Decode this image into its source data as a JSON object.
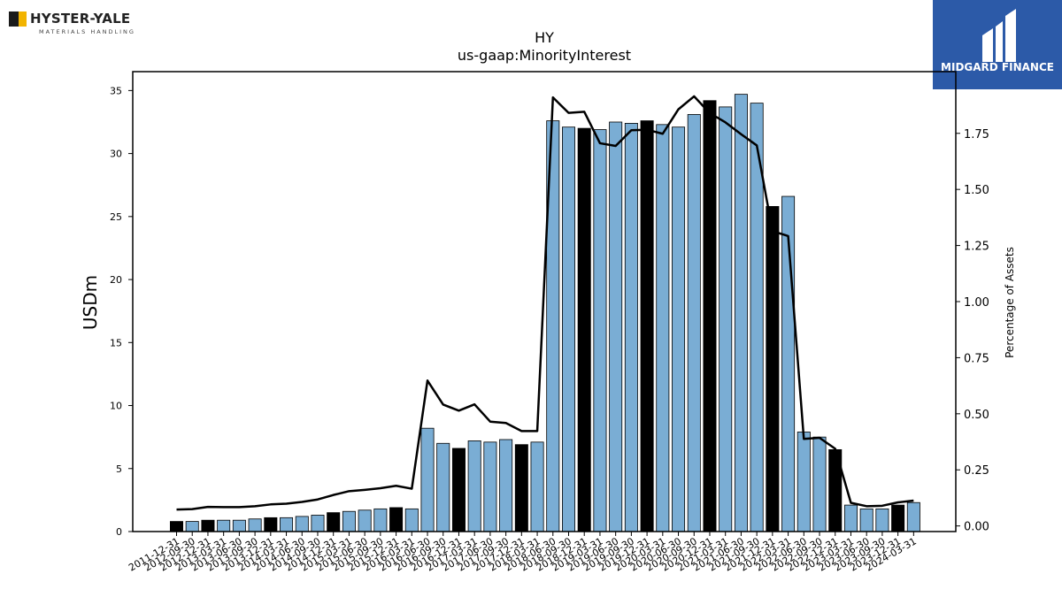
{
  "logos": {
    "left": {
      "name": "HYSTER-YALE",
      "subtitle": "MATERIALS HANDLING"
    },
    "right": {
      "name": "MIDGARD FINANCE"
    }
  },
  "chart_data": {
    "type": "bar",
    "title": "HY",
    "subtitle": "us-gaap:MinorityInterest",
    "ylabel": "USDm",
    "y2label": "Percentage of Assets",
    "ylim": [
      0,
      36.5
    ],
    "y2lim": [
      -0.025,
      2.025
    ],
    "yticks": [
      0,
      5,
      10,
      15,
      20,
      25,
      30,
      35
    ],
    "y2ticks": [
      "0.00",
      "0.25",
      "0.50",
      "0.75",
      "1.00",
      "1.25",
      "1.50",
      "1.75"
    ],
    "colors": {
      "bar": "#7aadd4",
      "highlight_bar": "#000000",
      "line": "#000000"
    },
    "categories": [
      "2011-12-31",
      "2012-09-30",
      "2012-12-31",
      "2013-03-31",
      "2013-06-30",
      "2013-09-30",
      "2013-12-31",
      "2014-03-31",
      "2014-06-30",
      "2014-09-30",
      "2014-12-31",
      "2015-03-31",
      "2015-06-30",
      "2015-09-30",
      "2015-12-31",
      "2016-03-31",
      "2016-06-30",
      "2016-09-30",
      "2016-12-31",
      "2017-03-31",
      "2017-06-30",
      "2017-09-30",
      "2017-12-31",
      "2018-03-31",
      "2018-06-30",
      "2018-09-30",
      "2018-12-31",
      "2019-03-31",
      "2019-06-30",
      "2019-09-30",
      "2019-12-31",
      "2020-03-31",
      "2020-06-30",
      "2020-09-30",
      "2020-12-31",
      "2021-03-31",
      "2021-06-30",
      "2021-09-30",
      "2021-12-31",
      "2022-03-31",
      "2022-06-30",
      "2022-09-30",
      "2022-12-31",
      "2023-03-31",
      "2023-06-30",
      "2023-09-30",
      "2023-12-31",
      "2024-03-31"
    ],
    "series": [
      {
        "kind": "bar",
        "values": [
          0.8,
          0.8,
          0.9,
          0.9,
          0.9,
          1.0,
          1.1,
          1.1,
          1.2,
          1.3,
          1.5,
          1.6,
          1.7,
          1.8,
          1.9,
          1.8,
          8.2,
          7.0,
          6.6,
          7.2,
          7.1,
          7.3,
          6.9,
          7.1,
          32.6,
          32.1,
          32.0,
          31.9,
          32.5,
          32.4,
          32.6,
          32.3,
          32.1,
          33.1,
          34.2,
          33.7,
          34.7,
          34.0,
          25.8,
          26.6,
          7.9,
          7.5,
          6.5,
          2.1,
          1.8,
          1.8,
          2.1,
          2.3
        ],
        "highlight": [
          true,
          false,
          true,
          false,
          false,
          false,
          true,
          false,
          false,
          false,
          true,
          false,
          false,
          false,
          true,
          false,
          false,
          false,
          true,
          false,
          false,
          false,
          true,
          false,
          false,
          false,
          true,
          false,
          false,
          false,
          true,
          false,
          false,
          false,
          true,
          false,
          false,
          false,
          true,
          false,
          false,
          false,
          true,
          false,
          false,
          false,
          true,
          false
        ]
      },
      {
        "kind": "line",
        "axis": "right",
        "values": [
          0.073,
          0.075,
          0.085,
          0.084,
          0.084,
          0.088,
          0.096,
          0.099,
          0.107,
          0.118,
          0.138,
          0.155,
          0.161,
          0.168,
          0.179,
          0.166,
          0.648,
          0.541,
          0.514,
          0.542,
          0.465,
          0.459,
          0.423,
          0.423,
          1.91,
          1.841,
          1.846,
          1.706,
          1.694,
          1.764,
          1.766,
          1.748,
          1.857,
          1.915,
          1.84,
          1.799,
          1.746,
          1.696,
          1.314,
          1.292,
          0.388,
          0.393,
          0.344,
          0.103,
          0.088,
          0.09,
          0.105,
          0.113
        ]
      }
    ]
  }
}
